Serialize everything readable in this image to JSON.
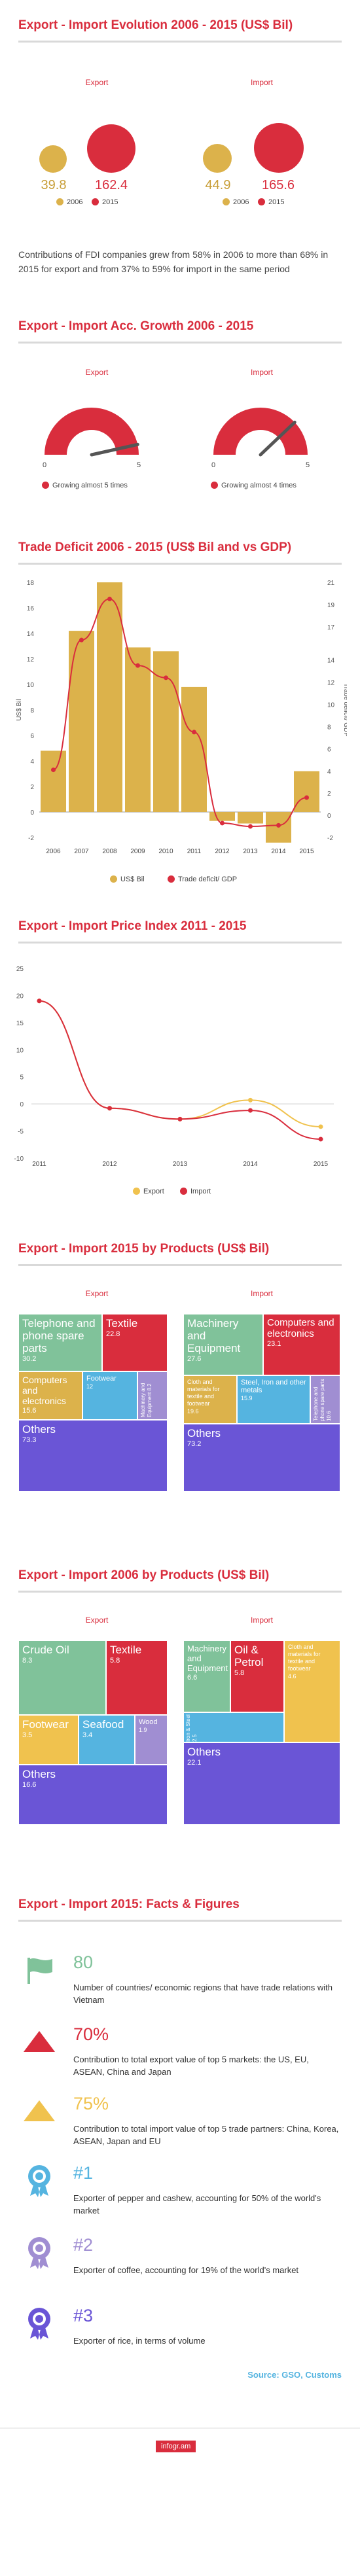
{
  "sections": {
    "s1": {
      "title": "Export - Import Evolution 2006 - 2015 (US$ Bil)",
      "export_label": "Export",
      "import_label": "Import",
      "export_2006": "39.8",
      "export_2015": "162.4",
      "import_2006": "44.9",
      "import_2015": "165.6",
      "legend_2006": "2006",
      "legend_2015": "2015",
      "note": "Contributions of FDI companies grew from 58% in 2006 to more than 68% in 2015 for export and from 37% to 59% for import in the same period"
    },
    "s2": {
      "title": "Export - Import Acc. Growth 2006 - 2015",
      "export_label": "Export",
      "import_label": "Import",
      "gauge_min": "0",
      "gauge_max": "5",
      "export_growth": 5,
      "import_growth": 4,
      "export_caption": "Growing almost 5 times",
      "import_caption": "Growing almost 4 times"
    },
    "s3": {
      "title": "Trade Deficit 2006 - 2015 (US$ Bil and vs GDP)",
      "ylabel_left": "US$ Bil",
      "ylabel_right": "Trade deficit/ GDP",
      "legend_bar": "US$ Bil",
      "legend_line": "Trade deficit/ GDP"
    },
    "s4": {
      "title": "Export - Import Price Index 2011 - 2015",
      "legend_export": "Export",
      "legend_import": "Import"
    },
    "s5": {
      "title": "Export - Import 2015 by Products (US$ Bil)",
      "export_label": "Export",
      "import_label": "Import",
      "export": [
        {
          "name": "Telephone and phone spare parts",
          "value": "30.2"
        },
        {
          "name": "Textile",
          "value": "22.8"
        },
        {
          "name": "Computers and electronics",
          "value": "15.6"
        },
        {
          "name": "Footwear",
          "value": "12"
        },
        {
          "name": "Machinery and Equipment",
          "value": "8.2"
        },
        {
          "name": "Others",
          "value": "73.3"
        }
      ],
      "import": [
        {
          "name": "Machinery and Equipment",
          "value": "27.6"
        },
        {
          "name": "Computers and electronics",
          "value": "23.1"
        },
        {
          "name": "Cloth and materials for textile and footwear",
          "value": "19.6"
        },
        {
          "name": "Steel, Iron and other metals",
          "value": "15.9"
        },
        {
          "name": "Telephone and phone spare parts",
          "value": "10.6"
        },
        {
          "name": "Others",
          "value": "73.2"
        }
      ]
    },
    "s6": {
      "title": "Export - Import 2006 by Products (US$ Bil)",
      "export_label": "Export",
      "import_label": "Import",
      "export": [
        {
          "name": "Crude Oil",
          "value": "8.3"
        },
        {
          "name": "Textile",
          "value": "5.8"
        },
        {
          "name": "Footwear",
          "value": "3.5"
        },
        {
          "name": "Seafood",
          "value": "3.4"
        },
        {
          "name": "Wood",
          "value": "1.9"
        },
        {
          "name": "Others",
          "value": "16.6"
        }
      ],
      "import": [
        {
          "name": "Machinery and Equipment",
          "value": "6.6"
        },
        {
          "name": "Oil & Petrol",
          "value": "5.8"
        },
        {
          "name": "Cloth and materials for textile and footwear",
          "value": "4.6"
        },
        {
          "name": "Iron & Steel",
          "value": "2.5"
        },
        {
          "name": "Others",
          "value": "22.1"
        }
      ]
    },
    "s7": {
      "title": "Export - Import 2015: Facts & Figures",
      "facts": [
        {
          "num": "80",
          "text": "Number of countries/ economic regions that have trade relations with Vietnam",
          "icon": "flag-icon"
        },
        {
          "num": "70%",
          "text": "Contribution to total export value of top 5 markets: the US, EU, ASEAN, China and Japan",
          "icon": "triangle-icon"
        },
        {
          "num": "75%",
          "text": "Contribution to total import value of top 5 trade partners: China, Korea, ASEAN, Japan and EU",
          "icon": "triangle-icon"
        },
        {
          "num": "#1",
          "text": "Exporter of pepper and cashew, accounting for 50% of the world's market",
          "icon": "medal-icon"
        },
        {
          "num": "#2",
          "text": "Exporter of coffee, accounting for 19% of the world's market",
          "icon": "medal-icon"
        },
        {
          "num": "#3",
          "text": "Exporter of rice, in terms of volume",
          "icon": "medal-icon"
        }
      ],
      "source": "Source: GSO, Customs"
    },
    "brand": "infogr.am"
  },
  "colors": {
    "red": "#d92d3d",
    "gold": "#dcb24b",
    "green": "#80c29a",
    "blue": "#55b4e0",
    "purple": "#6a55d6",
    "lavender": "#a08ed2",
    "gray": "#b9b9b9"
  },
  "chart_data": [
    {
      "type": "bar",
      "title": "Trade Deficit 2006 - 2015 (US$ Bil and vs GDP)",
      "categories": [
        "2006",
        "2007",
        "2008",
        "2009",
        "2010",
        "2011",
        "2012",
        "2013",
        "2014",
        "2015"
      ],
      "series": [
        {
          "name": "US$ Bil",
          "type": "bar",
          "axis": "left",
          "values": [
            4.8,
            14.2,
            18.0,
            12.9,
            12.6,
            9.8,
            -0.7,
            -0.9,
            -2.4,
            3.2
          ]
        },
        {
          "name": "Trade deficit/ GDP",
          "type": "line",
          "axis": "right",
          "values": [
            4.1,
            15.8,
            19.5,
            13.5,
            12.4,
            7.5,
            -0.7,
            -1.0,
            -0.9,
            1.6
          ]
        }
      ],
      "ylim_left": [
        -2,
        18
      ],
      "yticks_left": [
        -2,
        0,
        2,
        4,
        6,
        8,
        10,
        12,
        14,
        16,
        18
      ],
      "ylim_right": [
        -2,
        21
      ],
      "yticks_right": [
        -2,
        0,
        2,
        4,
        6,
        8,
        10,
        12,
        14,
        17,
        19,
        21
      ],
      "ylabel": "US$ Bil",
      "ylabel_right": "Trade deficit/ GDP"
    },
    {
      "type": "line",
      "title": "Export - Import Price Index 2011 - 2015",
      "x": [
        "2011",
        "2012",
        "2013",
        "2014",
        "2015"
      ],
      "series": [
        {
          "name": "Export",
          "values": [
            19.0,
            -0.8,
            -2.8,
            0.7,
            -4.2
          ]
        },
        {
          "name": "Import",
          "values": [
            19.0,
            -0.8,
            -2.8,
            -1.2,
            -6.5
          ]
        }
      ],
      "ylim": [
        -10,
        25
      ],
      "yticks": [
        -10,
        -5,
        0,
        5,
        10,
        15,
        20,
        25
      ]
    }
  ]
}
